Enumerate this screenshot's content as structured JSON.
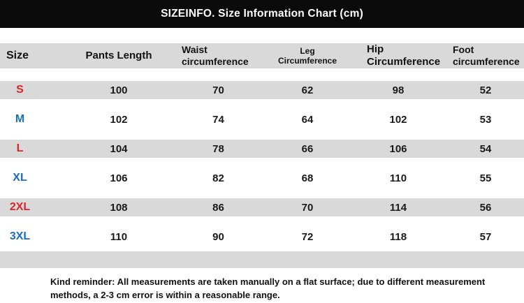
{
  "title": "SIZEINFO. Size Information Chart (cm)",
  "colors": {
    "title_bar_bg": "#0b0b0b",
    "title_text": "#ffffff",
    "row_stripe": "#d9d9d9",
    "size_label_red": "#d9262c",
    "size_label_blue": "#1a6fbd",
    "value_text": "#1a1a1a"
  },
  "chart_data": {
    "type": "table",
    "title": "SIZEINFO. Size Information Chart (cm)",
    "unit": "cm",
    "columns": [
      "Size",
      "Pants Length",
      "Waist circumference",
      "Leg Circumference",
      "Hip Circumference",
      "Foot circumference"
    ],
    "rows": [
      {
        "size": "S",
        "label_color": "#d9262c",
        "values": [
          100,
          70,
          62,
          98,
          52
        ]
      },
      {
        "size": "M",
        "label_color": "#1a6fbd",
        "values": [
          102,
          74,
          64,
          102,
          53
        ]
      },
      {
        "size": "L",
        "label_color": "#d9262c",
        "values": [
          104,
          78,
          66,
          106,
          54
        ]
      },
      {
        "size": "XL",
        "label_color": "#1a6fbd",
        "values": [
          106,
          82,
          68,
          110,
          55
        ]
      },
      {
        "size": "2XL",
        "label_color": "#d9262c",
        "values": [
          108,
          86,
          70,
          114,
          56
        ]
      },
      {
        "size": "3XL",
        "label_color": "#1a6fbd",
        "values": [
          110,
          90,
          72,
          118,
          57
        ]
      }
    ],
    "note": "Kind reminder: All measurements are taken manually on a flat surface; due to different measurement methods, a 2-3 cm error is within a reasonable range."
  }
}
